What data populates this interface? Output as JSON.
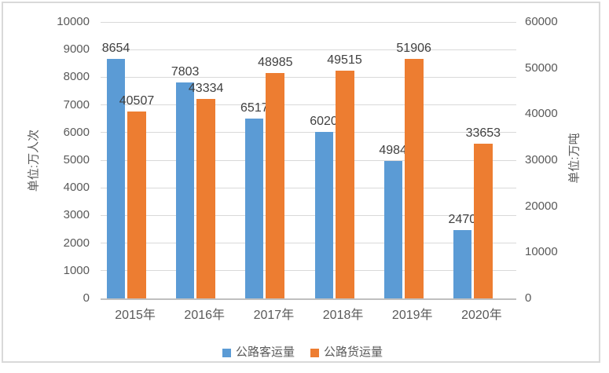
{
  "chart_data": {
    "type": "bar",
    "categories": [
      "2015年",
      "2016年",
      "2017年",
      "2018年",
      "2019年",
      "2020年"
    ],
    "series": [
      {
        "key": "passenger",
        "name": "公路客运量",
        "axis": "left",
        "color": "#5B9BD5",
        "values": [
          8654,
          7803,
          6517,
          6020,
          4984,
          2470
        ]
      },
      {
        "key": "freight",
        "name": "公路货运量",
        "axis": "right",
        "color": "#ED7D31",
        "values": [
          40507,
          43334,
          48985,
          49515,
          51906,
          33653
        ]
      }
    ],
    "left_axis": {
      "title": "单位:万人次",
      "min": 0,
      "max": 10000,
      "step": 1000
    },
    "right_axis": {
      "title": "单位:万吨",
      "min": 0,
      "max": 60000,
      "step": 10000
    },
    "grid": true,
    "legend_position": "bottom",
    "data_labels": "outside-end",
    "colors": {
      "gridline": "#D9D9D9",
      "axis_line": "#BFBFBF",
      "tick_text": "#595959",
      "data_label_text": "#404040",
      "frame_border": "#D9D9D9"
    }
  }
}
